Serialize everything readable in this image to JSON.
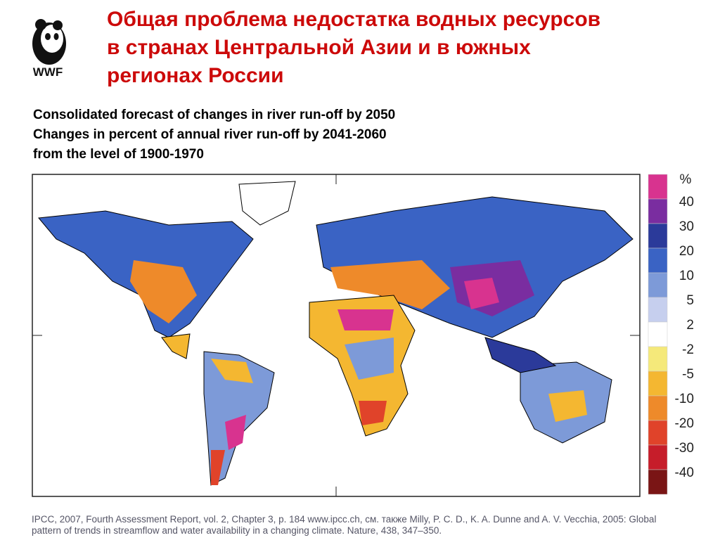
{
  "header": {
    "title": [
      "Общая проблема недостатка водных ресурсов",
      "в странах Центральной Азии и в южных",
      "регионах России"
    ],
    "logo": "WWF"
  },
  "caption": [
    "Consolidated forecast of changes in river run-off by 2050",
    "Changes in percent of annual river run-off by 2041-2060",
    "from the level of 1900-1970"
  ],
  "legend": {
    "unit": "%",
    "levels": [
      40,
      30,
      20,
      10,
      5,
      2,
      -2,
      -5,
      -10,
      -20,
      -30,
      -40
    ],
    "colors": [
      "#d8338f",
      "#7a2da0",
      "#2b3a9a",
      "#3a63c4",
      "#7d9ad8",
      "#c6cfee",
      "#ffffff",
      "#f5e97a",
      "#f4b731",
      "#ee8a2a",
      "#e0432a",
      "#c61d2a",
      "#7a1515"
    ]
  },
  "source": [
    "IPCC, 2007, Fourth Assessment Report, vol. 2, Chapter 3, p. 184  www.ipcc.ch, см. также Milly, P. C. D., K. A. Dunne and A. V. Vecchia, 2005: Global",
    "pattern of trends in streamflow and water availability in a changing climate. Nature, 438, 347–350."
  ]
}
